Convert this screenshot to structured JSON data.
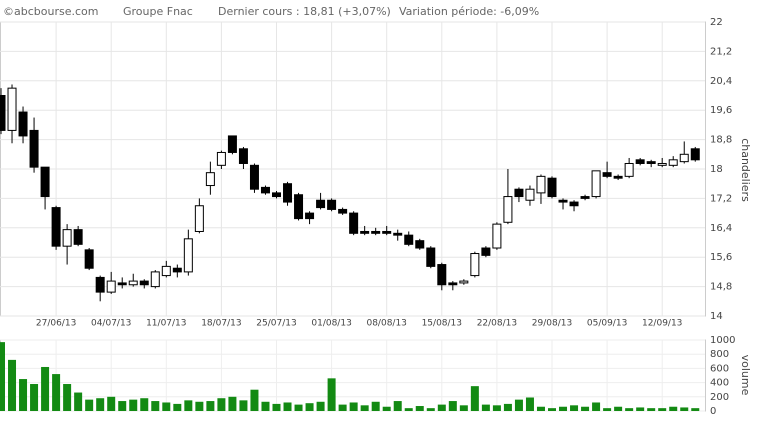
{
  "chart_data": {
    "type": "candlestick",
    "source": "©abcbourse.com",
    "title": "Groupe Fnac",
    "last_price": "Dernier cours : 18,81 (+3,07%)",
    "period_change": "Variation période: -6,09%",
    "ylabel": "chandeliers",
    "y2label": "volume",
    "categories": [
      null,
      null,
      null,
      null,
      null,
      "27/06/13",
      null,
      null,
      null,
      null,
      "04/07/13",
      null,
      null,
      null,
      null,
      "11/07/13",
      null,
      null,
      null,
      null,
      "18/07/13",
      null,
      null,
      null,
      null,
      "25/07/13",
      null,
      null,
      null,
      null,
      "01/08/13",
      null,
      null,
      null,
      null,
      "08/08/13",
      null,
      null,
      null,
      null,
      "15/08/13",
      null,
      null,
      null,
      null,
      "22/08/13",
      null,
      null,
      null,
      null,
      "29/08/13",
      null,
      null,
      null,
      null,
      "05/09/13",
      null,
      null,
      null,
      null,
      "12/09/13",
      null,
      null,
      null,
      null
    ],
    "open": [
      20.0,
      19.05,
      19.55,
      19.05,
      18.05,
      16.95,
      15.9,
      16.35,
      15.8,
      15.05,
      14.65,
      14.9,
      14.85,
      14.95,
      14.8,
      15.1,
      15.3,
      15.2,
      16.3,
      17.55,
      18.1,
      18.9,
      18.55,
      18.1,
      17.5,
      17.35,
      17.6,
      17.3,
      16.8,
      17.15,
      17.15,
      16.9,
      16.8,
      16.3,
      16.3,
      16.3,
      16.25,
      16.2,
      16.05,
      15.85,
      15.4,
      14.9,
      14.9,
      15.1,
      15.85,
      15.85,
      16.55,
      17.45,
      17.15,
      17.35,
      17.75,
      17.15,
      17.1,
      17.25,
      17.25,
      17.9,
      17.8,
      17.8,
      18.25,
      18.2,
      18.1,
      18.1,
      18.2,
      18.55,
      18.25
    ],
    "high": [
      20.2,
      20.3,
      19.7,
      19.4,
      18.05,
      17.0,
      16.5,
      16.45,
      15.85,
      15.1,
      15.2,
      15.05,
      15.15,
      15.0,
      15.25,
      15.5,
      15.4,
      16.35,
      17.2,
      18.2,
      18.5,
      18.9,
      18.6,
      18.15,
      17.55,
      17.4,
      17.65,
      17.35,
      16.85,
      17.35,
      17.2,
      16.95,
      16.85,
      16.45,
      16.4,
      16.45,
      16.35,
      16.3,
      16.1,
      15.9,
      15.45,
      14.95,
      15.0,
      15.75,
      15.9,
      16.55,
      18.0,
      17.5,
      17.55,
      17.85,
      17.8,
      17.2,
      17.15,
      17.3,
      17.95,
      18.2,
      17.85,
      18.3,
      18.3,
      18.25,
      18.3,
      18.35,
      18.75,
      18.6,
      18.9
    ],
    "low": [
      18.95,
      18.7,
      18.7,
      17.9,
      16.9,
      15.8,
      15.4,
      15.9,
      15.25,
      14.4,
      14.6,
      14.75,
      14.8,
      14.75,
      14.75,
      15.05,
      15.05,
      15.1,
      16.25,
      17.3,
      18.0,
      18.4,
      18.0,
      17.35,
      17.3,
      17.2,
      17.0,
      16.6,
      16.5,
      16.9,
      16.85,
      16.75,
      16.2,
      16.2,
      16.2,
      16.2,
      16.05,
      15.9,
      15.8,
      15.3,
      14.7,
      14.7,
      14.85,
      15.05,
      15.6,
      15.8,
      16.5,
      17.1,
      17.0,
      17.05,
      17.2,
      16.9,
      16.85,
      17.15,
      17.2,
      17.75,
      17.7,
      17.75,
      18.1,
      18.05,
      18.05,
      18.05,
      18.15,
      18.2,
      18.2
    ],
    "close": [
      19.05,
      20.2,
      18.9,
      18.05,
      17.25,
      15.9,
      16.35,
      15.95,
      15.3,
      14.65,
      14.95,
      14.85,
      14.95,
      14.85,
      15.2,
      15.35,
      15.2,
      16.1,
      17.0,
      17.9,
      18.45,
      18.45,
      18.15,
      17.45,
      17.35,
      17.25,
      17.1,
      16.65,
      16.65,
      16.95,
      16.9,
      16.8,
      16.25,
      16.25,
      16.25,
      16.25,
      16.2,
      15.95,
      15.85,
      15.35,
      14.85,
      14.85,
      14.95,
      15.7,
      15.65,
      16.5,
      17.25,
      17.25,
      17.45,
      17.8,
      17.25,
      17.1,
      17.0,
      17.2,
      17.95,
      17.8,
      17.75,
      18.15,
      18.15,
      18.15,
      18.15,
      18.25,
      18.4,
      18.25,
      18.81
    ],
    "up_color": "#ffffff",
    "down_color": "#000000",
    "volume": {
      "name": "volume",
      "color": "#138a13",
      "axis": "y2",
      "values": [
        970,
        720,
        450,
        380,
        620,
        520,
        380,
        260,
        160,
        180,
        200,
        140,
        160,
        180,
        140,
        120,
        100,
        150,
        130,
        140,
        180,
        200,
        150,
        300,
        130,
        100,
        120,
        90,
        110,
        130,
        460,
        90,
        120,
        80,
        130,
        60,
        140,
        40,
        70,
        40,
        90,
        140,
        80,
        350,
        90,
        80,
        100,
        160,
        190,
        60,
        40,
        60,
        80,
        60,
        120,
        40,
        60,
        40,
        50,
        40,
        40,
        60,
        50,
        40,
        50
      ]
    },
    "ylim": [
      14,
      22
    ],
    "yticks": [
      14,
      {
        "value": 14.8,
        "label": "14,8"
      },
      {
        "value": 15.6,
        "label": "15,6"
      },
      {
        "value": 16.4,
        "label": "16,4"
      },
      {
        "value": 17.2,
        "label": "17,2"
      },
      18,
      {
        "value": 18.8,
        "label": "18,8"
      },
      {
        "value": 19.6,
        "label": "19,6"
      },
      {
        "value": 20.4,
        "label": "20,4"
      },
      {
        "value": 21.2,
        "label": "21,2"
      },
      22
    ],
    "y2lim": [
      0,
      1000
    ],
    "y2ticks": [
      0,
      200,
      400,
      600,
      800,
      1000
    ],
    "grid": true
  }
}
